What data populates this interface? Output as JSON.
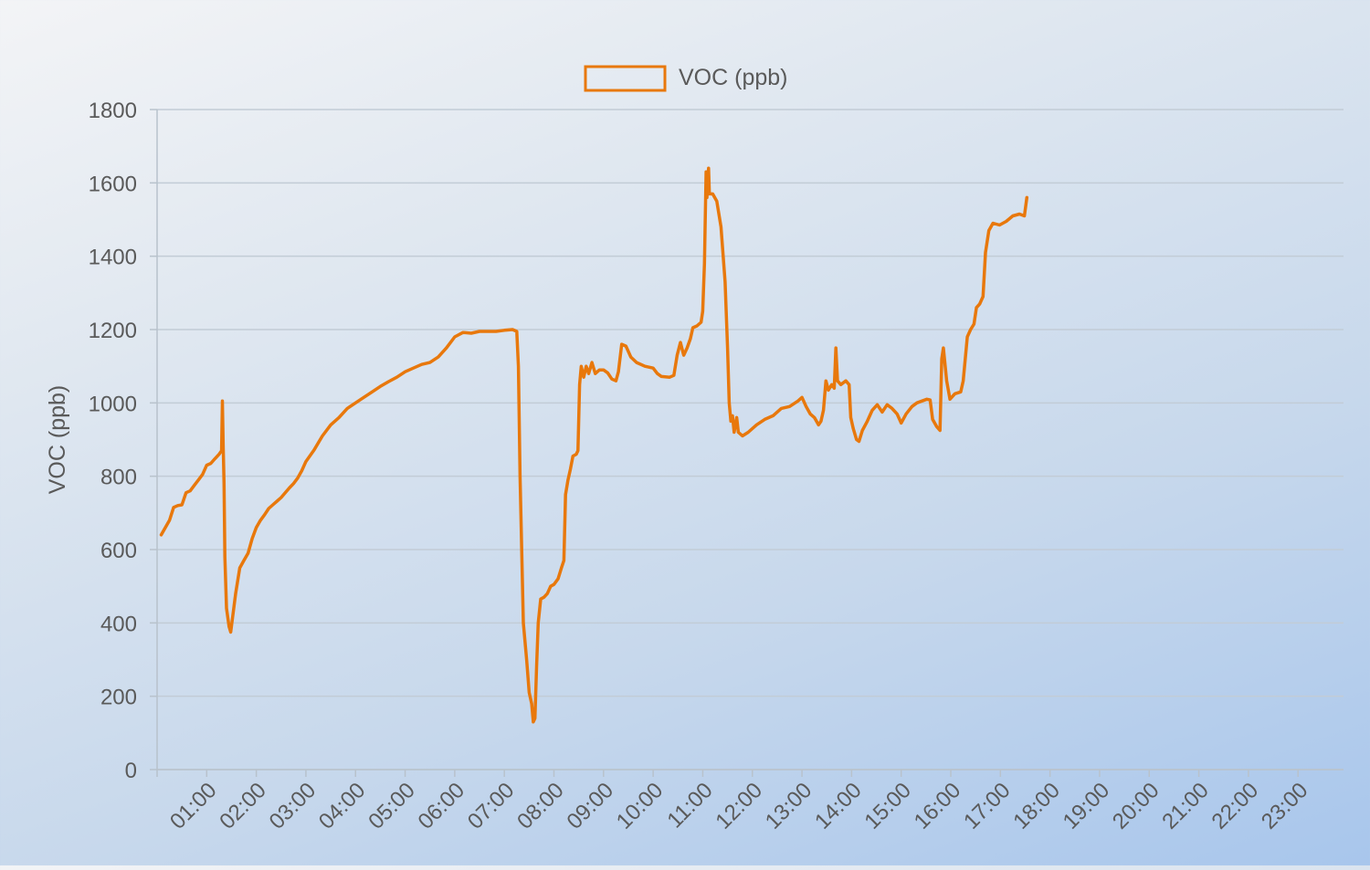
{
  "chart_data": {
    "type": "line",
    "title": "",
    "xlabel": "",
    "ylabel": "VOC (ppb)",
    "ylim": [
      0,
      1800
    ],
    "yticks": [
      0,
      200,
      400,
      600,
      800,
      1000,
      1200,
      1400,
      1600,
      1800
    ],
    "xlim": [
      "00:00",
      "23:55"
    ],
    "xtick_labels": [
      "01:00",
      "02:00",
      "03:00",
      "04:00",
      "05:00",
      "06:00",
      "07:00",
      "08:00",
      "09:00",
      "10:00",
      "11:00",
      "12:00",
      "13:00",
      "14:00",
      "15:00",
      "16:00",
      "17:00",
      "18:00",
      "19:00",
      "20:00",
      "21:00",
      "22:00",
      "23:00"
    ],
    "grid": true,
    "legend_position": "top-center",
    "series_color": "#e8780c",
    "series": [
      {
        "name": "VOC (ppb)",
        "points": [
          [
            "00:05",
            640
          ],
          [
            "00:15",
            680
          ],
          [
            "00:20",
            715
          ],
          [
            "00:25",
            720
          ],
          [
            "00:30",
            722
          ],
          [
            "00:35",
            755
          ],
          [
            "00:40",
            760
          ],
          [
            "00:45",
            775
          ],
          [
            "00:50",
            790
          ],
          [
            "00:55",
            805
          ],
          [
            "01:00",
            830
          ],
          [
            "01:05",
            835
          ],
          [
            "01:10",
            848
          ],
          [
            "01:15",
            860
          ],
          [
            "01:18",
            870
          ],
          [
            "01:19",
            1005
          ],
          [
            "01:20",
            880
          ],
          [
            "01:21",
            780
          ],
          [
            "01:22",
            580
          ],
          [
            "01:24",
            440
          ],
          [
            "01:27",
            390
          ],
          [
            "01:29",
            375
          ],
          [
            "01:31",
            410
          ],
          [
            "01:35",
            480
          ],
          [
            "01:40",
            550
          ],
          [
            "01:45",
            570
          ],
          [
            "01:50",
            590
          ],
          [
            "01:55",
            630
          ],
          [
            "02:00",
            660
          ],
          [
            "02:05",
            680
          ],
          [
            "02:10",
            695
          ],
          [
            "02:15",
            712
          ],
          [
            "02:20",
            722
          ],
          [
            "02:25",
            732
          ],
          [
            "02:30",
            742
          ],
          [
            "02:35",
            755
          ],
          [
            "02:40",
            768
          ],
          [
            "02:45",
            780
          ],
          [
            "02:50",
            795
          ],
          [
            "02:55",
            815
          ],
          [
            "03:00",
            840
          ],
          [
            "03:10",
            872
          ],
          [
            "03:20",
            910
          ],
          [
            "03:30",
            940
          ],
          [
            "03:40",
            960
          ],
          [
            "03:50",
            985
          ],
          [
            "04:00",
            1000
          ],
          [
            "04:10",
            1015
          ],
          [
            "04:20",
            1030
          ],
          [
            "04:30",
            1045
          ],
          [
            "04:40",
            1058
          ],
          [
            "04:50",
            1070
          ],
          [
            "05:00",
            1085
          ],
          [
            "05:10",
            1095
          ],
          [
            "05:20",
            1105
          ],
          [
            "05:30",
            1110
          ],
          [
            "05:40",
            1125
          ],
          [
            "05:50",
            1150
          ],
          [
            "06:00",
            1180
          ],
          [
            "06:10",
            1192
          ],
          [
            "06:20",
            1190
          ],
          [
            "06:30",
            1195
          ],
          [
            "06:40",
            1195
          ],
          [
            "06:50",
            1195
          ],
          [
            "07:00",
            1198
          ],
          [
            "07:10",
            1200
          ],
          [
            "07:15",
            1195
          ],
          [
            "07:17",
            1100
          ],
          [
            "07:19",
            800
          ],
          [
            "07:21",
            600
          ],
          [
            "07:23",
            400
          ],
          [
            "07:27",
            300
          ],
          [
            "07:30",
            210
          ],
          [
            "07:33",
            180
          ],
          [
            "07:35",
            130
          ],
          [
            "07:37",
            140
          ],
          [
            "07:39",
            280
          ],
          [
            "07:41",
            400
          ],
          [
            "07:44",
            465
          ],
          [
            "07:48",
            470
          ],
          [
            "07:52",
            480
          ],
          [
            "07:56",
            500
          ],
          [
            "08:00",
            505
          ],
          [
            "08:05",
            520
          ],
          [
            "08:09",
            550
          ],
          [
            "08:12",
            570
          ],
          [
            "08:14",
            750
          ],
          [
            "08:17",
            790
          ],
          [
            "08:20",
            820
          ],
          [
            "08:23",
            855
          ],
          [
            "08:27",
            860
          ],
          [
            "08:29",
            870
          ],
          [
            "08:31",
            1050
          ],
          [
            "08:33",
            1100
          ],
          [
            "08:36",
            1070
          ],
          [
            "08:39",
            1100
          ],
          [
            "08:42",
            1080
          ],
          [
            "08:46",
            1110
          ],
          [
            "08:50",
            1080
          ],
          [
            "08:55",
            1090
          ],
          [
            "09:00",
            1090
          ],
          [
            "09:05",
            1082
          ],
          [
            "09:10",
            1065
          ],
          [
            "09:15",
            1060
          ],
          [
            "09:18",
            1085
          ],
          [
            "09:22",
            1160
          ],
          [
            "09:27",
            1155
          ],
          [
            "09:33",
            1125
          ],
          [
            "09:40",
            1110
          ],
          [
            "09:50",
            1100
          ],
          [
            "10:00",
            1095
          ],
          [
            "10:05",
            1080
          ],
          [
            "10:10",
            1072
          ],
          [
            "10:20",
            1070
          ],
          [
            "10:25",
            1075
          ],
          [
            "10:29",
            1130
          ],
          [
            "10:33",
            1165
          ],
          [
            "10:37",
            1130
          ],
          [
            "10:41",
            1150
          ],
          [
            "10:45",
            1175
          ],
          [
            "10:48",
            1205
          ],
          [
            "10:53",
            1210
          ],
          [
            "10:58",
            1220
          ],
          [
            "11:00",
            1250
          ],
          [
            "11:02",
            1380
          ],
          [
            "11:04",
            1630
          ],
          [
            "11:05",
            1560
          ],
          [
            "11:07",
            1640
          ],
          [
            "11:08",
            1570
          ],
          [
            "11:12",
            1570
          ],
          [
            "11:17",
            1550
          ],
          [
            "11:22",
            1480
          ],
          [
            "11:27",
            1330
          ],
          [
            "11:30",
            1150
          ],
          [
            "11:32",
            1000
          ],
          [
            "11:34",
            950
          ],
          [
            "11:36",
            965
          ],
          [
            "11:38",
            920
          ],
          [
            "11:41",
            960
          ],
          [
            "11:43",
            920
          ],
          [
            "11:48",
            910
          ],
          [
            "11:55",
            920
          ],
          [
            "12:05",
            940
          ],
          [
            "12:15",
            955
          ],
          [
            "12:25",
            965
          ],
          [
            "12:35",
            985
          ],
          [
            "12:45",
            990
          ],
          [
            "12:55",
            1005
          ],
          [
            "13:00",
            1015
          ],
          [
            "13:05",
            990
          ],
          [
            "13:10",
            970
          ],
          [
            "13:15",
            960
          ],
          [
            "13:20",
            940
          ],
          [
            "13:23",
            950
          ],
          [
            "13:26",
            980
          ],
          [
            "13:29",
            1060
          ],
          [
            "13:32",
            1035
          ],
          [
            "13:36",
            1050
          ],
          [
            "13:39",
            1040
          ],
          [
            "13:41",
            1150
          ],
          [
            "13:43",
            1060
          ],
          [
            "13:47",
            1050
          ],
          [
            "13:53",
            1060
          ],
          [
            "13:57",
            1050
          ],
          [
            "13:59",
            960
          ],
          [
            "14:02",
            930
          ],
          [
            "14:06",
            900
          ],
          [
            "14:09",
            895
          ],
          [
            "14:13",
            925
          ],
          [
            "14:19",
            950
          ],
          [
            "14:25",
            980
          ],
          [
            "14:31",
            995
          ],
          [
            "14:37",
            975
          ],
          [
            "14:43",
            995
          ],
          [
            "14:49",
            985
          ],
          [
            "14:55",
            970
          ],
          [
            "15:00",
            945
          ],
          [
            "15:06",
            970
          ],
          [
            "15:13",
            990
          ],
          [
            "15:19",
            1000
          ],
          [
            "15:25",
            1005
          ],
          [
            "15:31",
            1010
          ],
          [
            "15:35",
            1008
          ],
          [
            "15:38",
            955
          ],
          [
            "15:43",
            935
          ],
          [
            "15:47",
            925
          ],
          [
            "15:49",
            1120
          ],
          [
            "15:51",
            1150
          ],
          [
            "15:55",
            1060
          ],
          [
            "15:59",
            1010
          ],
          [
            "16:05",
            1025
          ],
          [
            "16:12",
            1030
          ],
          [
            "16:15",
            1060
          ],
          [
            "16:20",
            1180
          ],
          [
            "16:24",
            1200
          ],
          [
            "16:28",
            1215
          ],
          [
            "16:31",
            1260
          ],
          [
            "16:35",
            1270
          ],
          [
            "16:39",
            1290
          ],
          [
            "16:42",
            1410
          ],
          [
            "16:46",
            1470
          ],
          [
            "16:51",
            1490
          ],
          [
            "16:59",
            1485
          ],
          [
            "17:07",
            1495
          ],
          [
            "17:15",
            1510
          ],
          [
            "17:23",
            1515
          ],
          [
            "17:29",
            1510
          ],
          [
            "17:32",
            1560
          ]
        ]
      }
    ]
  }
}
